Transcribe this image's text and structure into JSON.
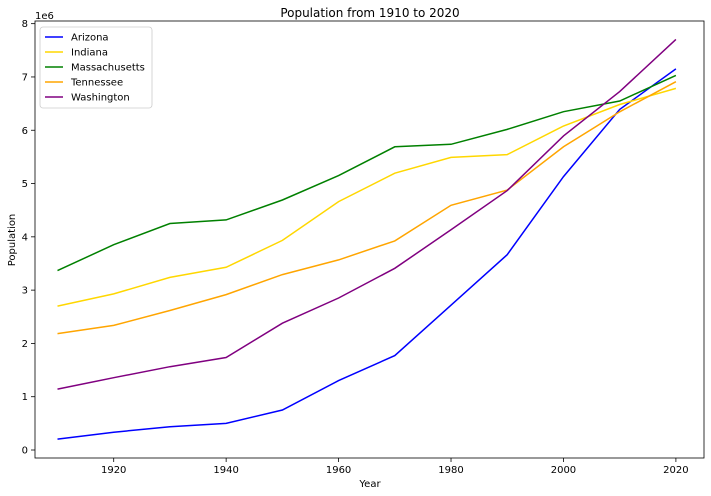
{
  "chart_data": {
    "type": "line",
    "title": "Population from 1910 to 2020",
    "xlabel": "Year",
    "ylabel": "Population",
    "y_offset_label": "1e6",
    "xlim": [
      1906,
      2025
    ],
    "ylim": [
      -0.15,
      8.05
    ],
    "x_ticks": [
      1920,
      1940,
      1960,
      1980,
      2000,
      2020
    ],
    "y_ticks": [
      0,
      1,
      2,
      3,
      4,
      5,
      6,
      7,
      8
    ],
    "grid": false,
    "legend_position": "top-left",
    "x": [
      1910,
      1920,
      1930,
      1940,
      1950,
      1960,
      1970,
      1980,
      1990,
      2000,
      2010,
      2020
    ],
    "series": [
      {
        "name": "Arizona",
        "color": "#0000ff",
        "values": [
          0.204,
          0.334,
          0.436,
          0.499,
          0.75,
          1.302,
          1.771,
          2.718,
          3.665,
          5.131,
          6.392,
          7.152
        ]
      },
      {
        "name": "Indiana",
        "color": "#ffd700",
        "values": [
          2.701,
          2.93,
          3.239,
          3.428,
          3.934,
          4.662,
          5.194,
          5.49,
          5.544,
          6.08,
          6.484,
          6.786
        ]
      },
      {
        "name": "Massachusetts",
        "color": "#008000",
        "values": [
          3.366,
          3.852,
          4.25,
          4.317,
          4.691,
          5.149,
          5.689,
          5.737,
          6.016,
          6.349,
          6.548,
          7.03
        ]
      },
      {
        "name": "Tennessee",
        "color": "#ffa500",
        "values": [
          2.185,
          2.338,
          2.617,
          2.916,
          3.292,
          3.567,
          3.924,
          4.591,
          4.877,
          5.689,
          6.346,
          6.911
        ]
      },
      {
        "name": "Washington",
        "color": "#800080",
        "values": [
          1.142,
          1.357,
          1.563,
          1.736,
          2.379,
          2.853,
          3.409,
          4.132,
          4.867,
          5.894,
          6.725,
          7.705
        ]
      }
    ]
  }
}
